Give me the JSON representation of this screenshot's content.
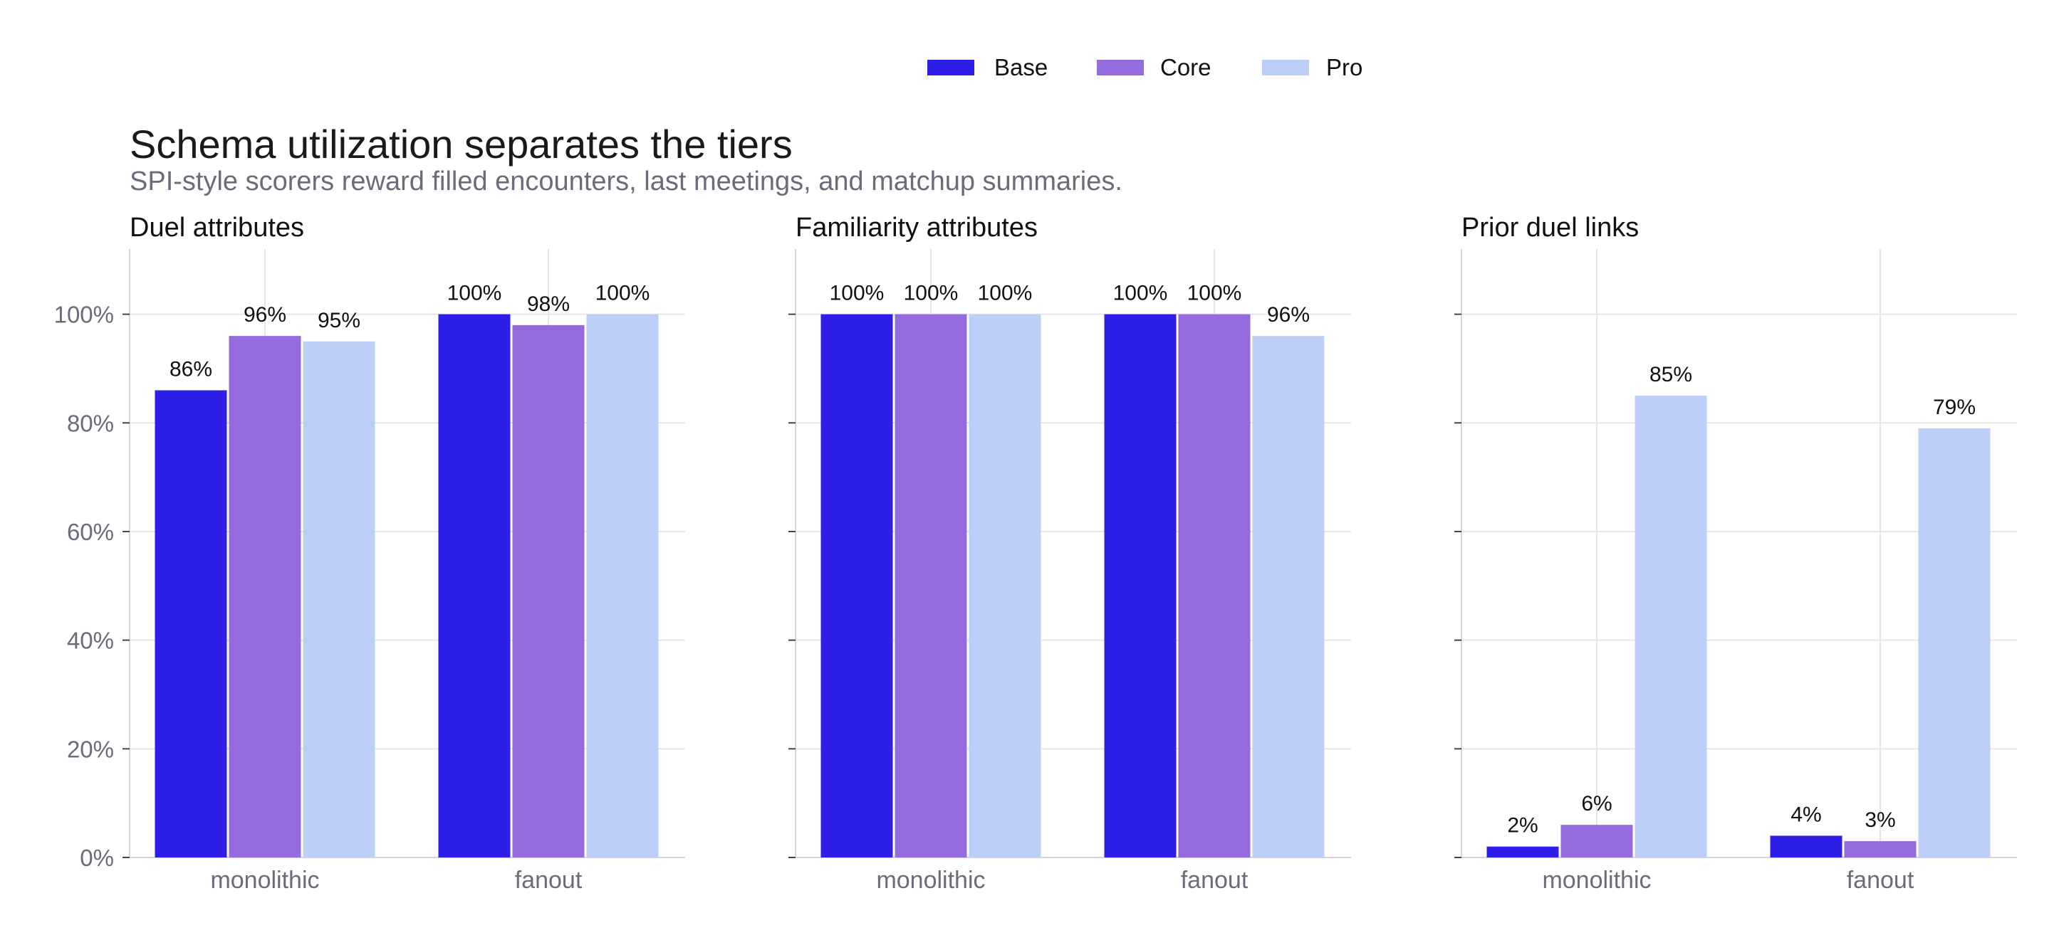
{
  "title": "Schema utilization separates the tiers",
  "subtitle": "SPI-style scorers reward filled encounters, last meetings, and matchup summaries.",
  "colors": {
    "Base": "#2d1fe8",
    "Core": "#936bdc",
    "Pro": "#bdcff7",
    "grid": "#e6e6e6",
    "axis": "#d6d6d6"
  },
  "legend": {
    "position": "top-center",
    "items": [
      "Base",
      "Core",
      "Pro"
    ]
  },
  "y_ticks": [
    "0%",
    "20%",
    "40%",
    "60%",
    "80%",
    "100%"
  ],
  "chart_data": [
    {
      "type": "bar",
      "title": "Duel attributes",
      "categories": [
        "monolithic",
        "fanout"
      ],
      "ylim": [
        0,
        112
      ],
      "series": [
        {
          "name": "Base",
          "values": [
            86,
            100
          ],
          "labels": [
            "86%",
            "100%"
          ]
        },
        {
          "name": "Core",
          "values": [
            96,
            98
          ],
          "labels": [
            "96%",
            "98%"
          ]
        },
        {
          "name": "Pro",
          "values": [
            95,
            100
          ],
          "labels": [
            "95%",
            "100%"
          ]
        }
      ],
      "grid": true
    },
    {
      "type": "bar",
      "title": "Familiarity attributes",
      "categories": [
        "monolithic",
        "fanout"
      ],
      "ylim": [
        0,
        112
      ],
      "series": [
        {
          "name": "Base",
          "values": [
            100,
            100
          ],
          "labels": [
            "100%",
            "100%"
          ]
        },
        {
          "name": "Core",
          "values": [
            100,
            100
          ],
          "labels": [
            "100%",
            "100%"
          ]
        },
        {
          "name": "Pro",
          "values": [
            100,
            96
          ],
          "labels": [
            "100%",
            "96%"
          ]
        }
      ],
      "grid": true
    },
    {
      "type": "bar",
      "title": "Prior duel links",
      "categories": [
        "monolithic",
        "fanout"
      ],
      "ylim": [
        0,
        112
      ],
      "series": [
        {
          "name": "Base",
          "values": [
            2,
            4
          ],
          "labels": [
            "2%",
            "4%"
          ]
        },
        {
          "name": "Core",
          "values": [
            6,
            3
          ],
          "labels": [
            "6%",
            "3%"
          ]
        },
        {
          "name": "Pro",
          "values": [
            85,
            79
          ],
          "labels": [
            "85%",
            "79%"
          ]
        }
      ],
      "grid": true
    }
  ]
}
